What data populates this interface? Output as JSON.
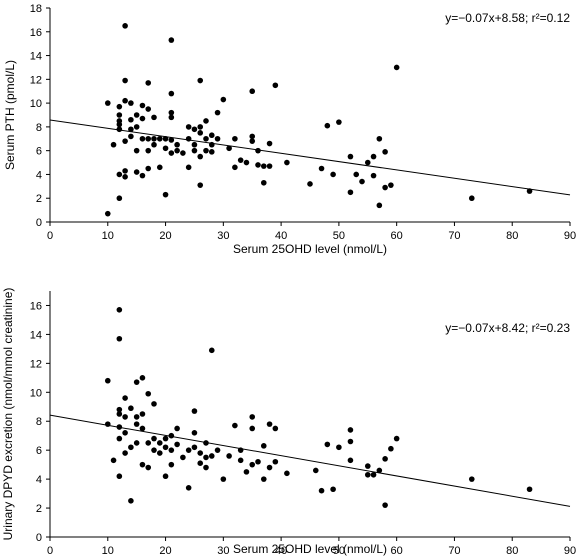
{
  "chart_data": [
    {
      "type": "scatter",
      "ylabel": "Serum PTH (pmol/L)",
      "xlabel": "Serum 25OHD level (nmol/L)",
      "annotation": "y=−0.07x+8.58; r²=0.12",
      "xlim": [
        0,
        90
      ],
      "ylim": [
        0,
        18
      ],
      "xticks": [
        0,
        10,
        20,
        30,
        40,
        50,
        60,
        70,
        80,
        90
      ],
      "yticks": [
        0,
        2,
        4,
        6,
        8,
        10,
        12,
        14,
        16,
        18
      ],
      "regression": {
        "slope": -0.07,
        "intercept": 8.58
      },
      "grid": false,
      "points": [
        [
          10,
          0.7
        ],
        [
          10,
          10.0
        ],
        [
          11,
          6.5
        ],
        [
          12,
          2.0
        ],
        [
          12,
          4.0
        ],
        [
          12,
          7.8
        ],
        [
          12,
          8.2
        ],
        [
          12,
          9.0
        ],
        [
          12,
          9.7
        ],
        [
          12,
          8.5
        ],
        [
          13,
          3.8
        ],
        [
          13,
          6.8
        ],
        [
          13,
          10.2
        ],
        [
          13,
          11.9
        ],
        [
          13,
          16.5
        ],
        [
          13,
          4.3
        ],
        [
          14,
          7.2
        ],
        [
          14,
          8.6
        ],
        [
          14,
          10.0
        ],
        [
          14,
          7.8
        ],
        [
          15,
          9.0
        ],
        [
          15,
          4.2
        ],
        [
          15,
          8.0
        ],
        [
          15,
          6.0
        ],
        [
          16,
          7.0
        ],
        [
          16,
          3.9
        ],
        [
          16,
          8.7
        ],
        [
          16,
          9.8
        ],
        [
          17,
          7.0
        ],
        [
          17,
          6.0
        ],
        [
          17,
          9.5
        ],
        [
          17,
          11.7
        ],
        [
          17,
          4.5
        ],
        [
          18,
          7.0
        ],
        [
          18,
          6.5
        ],
        [
          18,
          8.8
        ],
        [
          19,
          4.6
        ],
        [
          19,
          7.0
        ],
        [
          20,
          2.3
        ],
        [
          20,
          6.2
        ],
        [
          20,
          7.0
        ],
        [
          21,
          6.9
        ],
        [
          21,
          5.8
        ],
        [
          21,
          8.8
        ],
        [
          21,
          9.2
        ],
        [
          21,
          10.8
        ],
        [
          21,
          15.3
        ],
        [
          22,
          6.5
        ],
        [
          22,
          6.0
        ],
        [
          23,
          5.8
        ],
        [
          24,
          7.0
        ],
        [
          24,
          8.0
        ],
        [
          24,
          4.6
        ],
        [
          25,
          6.0
        ],
        [
          25,
          6.5
        ],
        [
          25,
          7.8
        ],
        [
          26,
          3.1
        ],
        [
          26,
          5.5
        ],
        [
          26,
          7.5
        ],
        [
          26,
          8.0
        ],
        [
          26,
          11.9
        ],
        [
          27,
          6.0
        ],
        [
          27,
          7.0
        ],
        [
          27,
          8.5
        ],
        [
          28,
          5.9
        ],
        [
          28,
          7.3
        ],
        [
          28,
          6.5
        ],
        [
          29,
          7.0
        ],
        [
          29,
          9.2
        ],
        [
          30,
          10.3
        ],
        [
          31,
          6.2
        ],
        [
          32,
          4.6
        ],
        [
          32,
          7.0
        ],
        [
          33,
          5.2
        ],
        [
          34,
          5.0
        ],
        [
          35,
          6.8
        ],
        [
          35,
          7.2
        ],
        [
          35,
          11.0
        ],
        [
          36,
          4.8
        ],
        [
          36,
          6.0
        ],
        [
          37,
          3.3
        ],
        [
          37,
          4.7
        ],
        [
          38,
          4.7
        ],
        [
          38,
          6.6
        ],
        [
          39,
          11.5
        ],
        [
          41,
          5.0
        ],
        [
          45,
          3.2
        ],
        [
          47,
          4.5
        ],
        [
          48,
          8.1
        ],
        [
          49,
          4.0
        ],
        [
          50,
          8.4
        ],
        [
          52,
          2.5
        ],
        [
          52,
          5.5
        ],
        [
          53,
          4.0
        ],
        [
          54,
          3.4
        ],
        [
          55,
          5.0
        ],
        [
          56,
          3.9
        ],
        [
          56,
          5.5
        ],
        [
          57,
          1.4
        ],
        [
          57,
          7.0
        ],
        [
          58,
          5.9
        ],
        [
          58,
          2.9
        ],
        [
          59,
          3.1
        ],
        [
          60,
          13.0
        ],
        [
          73,
          2.0
        ],
        [
          83,
          2.6
        ]
      ]
    },
    {
      "type": "scatter",
      "ylabel": "Urinary DPYD excretion (nmol/mmol creatinine)",
      "xlabel": "Serum 25OHD level (nmol/L)",
      "annotation": "y=−0.07x+8.42; r²=0.23",
      "xlim": [
        0,
        90
      ],
      "ylim": [
        0,
        17
      ],
      "xticks": [
        0,
        10,
        20,
        30,
        40,
        50,
        60,
        70,
        80,
        90
      ],
      "yticks": [
        0,
        2,
        4,
        6,
        8,
        10,
        12,
        14,
        16
      ],
      "regression": {
        "slope": -0.07,
        "intercept": 8.42
      },
      "grid": false,
      "points": [
        [
          10,
          7.8
        ],
        [
          10,
          10.8
        ],
        [
          11,
          5.3
        ],
        [
          12,
          4.2
        ],
        [
          12,
          6.8
        ],
        [
          12,
          7.6
        ],
        [
          12,
          8.5
        ],
        [
          12,
          8.8
        ],
        [
          12,
          13.7
        ],
        [
          12,
          15.7
        ],
        [
          13,
          5.8
        ],
        [
          13,
          7.2
        ],
        [
          13,
          8.3
        ],
        [
          13,
          9.6
        ],
        [
          14,
          2.5
        ],
        [
          14,
          8.9
        ],
        [
          14,
          6.2
        ],
        [
          15,
          6.5
        ],
        [
          15,
          7.8
        ],
        [
          15,
          8.3
        ],
        [
          15,
          10.7
        ],
        [
          16,
          5.0
        ],
        [
          16,
          7.5
        ],
        [
          16,
          8.5
        ],
        [
          16,
          11.0
        ],
        [
          17,
          6.5
        ],
        [
          17,
          4.8
        ],
        [
          17,
          9.9
        ],
        [
          18,
          6.8
        ],
        [
          18,
          6.0
        ],
        [
          18,
          9.2
        ],
        [
          19,
          6.5
        ],
        [
          19,
          5.8
        ],
        [
          20,
          4.2
        ],
        [
          20,
          6.2
        ],
        [
          20,
          6.8
        ],
        [
          21,
          6.0
        ],
        [
          21,
          5.0
        ],
        [
          21,
          7.0
        ],
        [
          22,
          6.4
        ],
        [
          22,
          7.5
        ],
        [
          23,
          5.5
        ],
        [
          24,
          6.0
        ],
        [
          24,
          3.4
        ],
        [
          25,
          6.2
        ],
        [
          25,
          8.7
        ],
        [
          25,
          7.2
        ],
        [
          26,
          5.8
        ],
        [
          26,
          5.1
        ],
        [
          27,
          5.5
        ],
        [
          27,
          6.5
        ],
        [
          27,
          4.8
        ],
        [
          28,
          5.6
        ],
        [
          28,
          12.9
        ],
        [
          29,
          6.0
        ],
        [
          30,
          4.0
        ],
        [
          31,
          5.6
        ],
        [
          32,
          7.7
        ],
        [
          33,
          6.0
        ],
        [
          33,
          5.3
        ],
        [
          34,
          4.5
        ],
        [
          35,
          5.0
        ],
        [
          35,
          7.5
        ],
        [
          35,
          8.3
        ],
        [
          36,
          5.2
        ],
        [
          37,
          4.0
        ],
        [
          37,
          6.3
        ],
        [
          38,
          7.8
        ],
        [
          38,
          4.8
        ],
        [
          39,
          7.5
        ],
        [
          39,
          5.2
        ],
        [
          41,
          4.4
        ],
        [
          46,
          4.6
        ],
        [
          47,
          3.2
        ],
        [
          48,
          6.4
        ],
        [
          49,
          3.3
        ],
        [
          50,
          6.2
        ],
        [
          52,
          6.6
        ],
        [
          52,
          7.4
        ],
        [
          52,
          5.3
        ],
        [
          55,
          4.9
        ],
        [
          55,
          4.3
        ],
        [
          56,
          4.3
        ],
        [
          57,
          4.6
        ],
        [
          58,
          2.2
        ],
        [
          58,
          5.4
        ],
        [
          59,
          6.1
        ],
        [
          60,
          6.8
        ],
        [
          73,
          4.0
        ],
        [
          83,
          3.3
        ]
      ]
    }
  ]
}
